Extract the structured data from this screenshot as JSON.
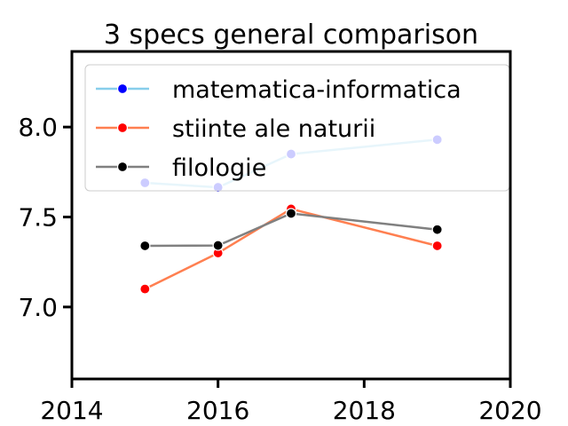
{
  "chart_data": {
    "type": "line",
    "title": "3 specs general comparison",
    "xlabel": "",
    "ylabel": "",
    "xlim": [
      2014,
      2020
    ],
    "ylim": [
      6.6,
      8.42
    ],
    "x_ticks": [
      2014,
      2016,
      2018,
      2020
    ],
    "x_tick_labels": [
      "2014",
      "2016",
      "2018",
      "2020"
    ],
    "y_ticks": [
      7.0,
      7.5,
      8.0
    ],
    "y_tick_labels": [
      "7.0",
      "7.5",
      "8.0"
    ],
    "grid": false,
    "legend_position": "top-right",
    "series": [
      {
        "name": "matematica-informatica",
        "line_color": "#87CEEB",
        "marker_color": "#0000FF",
        "x": [
          2015,
          2016,
          2017,
          2019
        ],
        "y": [
          7.69,
          7.665,
          7.85,
          7.93
        ]
      },
      {
        "name": "stiinte ale naturii",
        "line_color": "#FF7F50",
        "marker_color": "#FF0000",
        "x": [
          2015,
          2016,
          2017,
          2019
        ],
        "y": [
          7.1,
          7.3,
          7.545,
          7.34
        ]
      },
      {
        "name": "filologie",
        "line_color": "#808080",
        "marker_color": "#000000",
        "x": [
          2015,
          2016,
          2017,
          2019
        ],
        "y": [
          7.34,
          7.342,
          7.52,
          7.43
        ]
      }
    ]
  }
}
